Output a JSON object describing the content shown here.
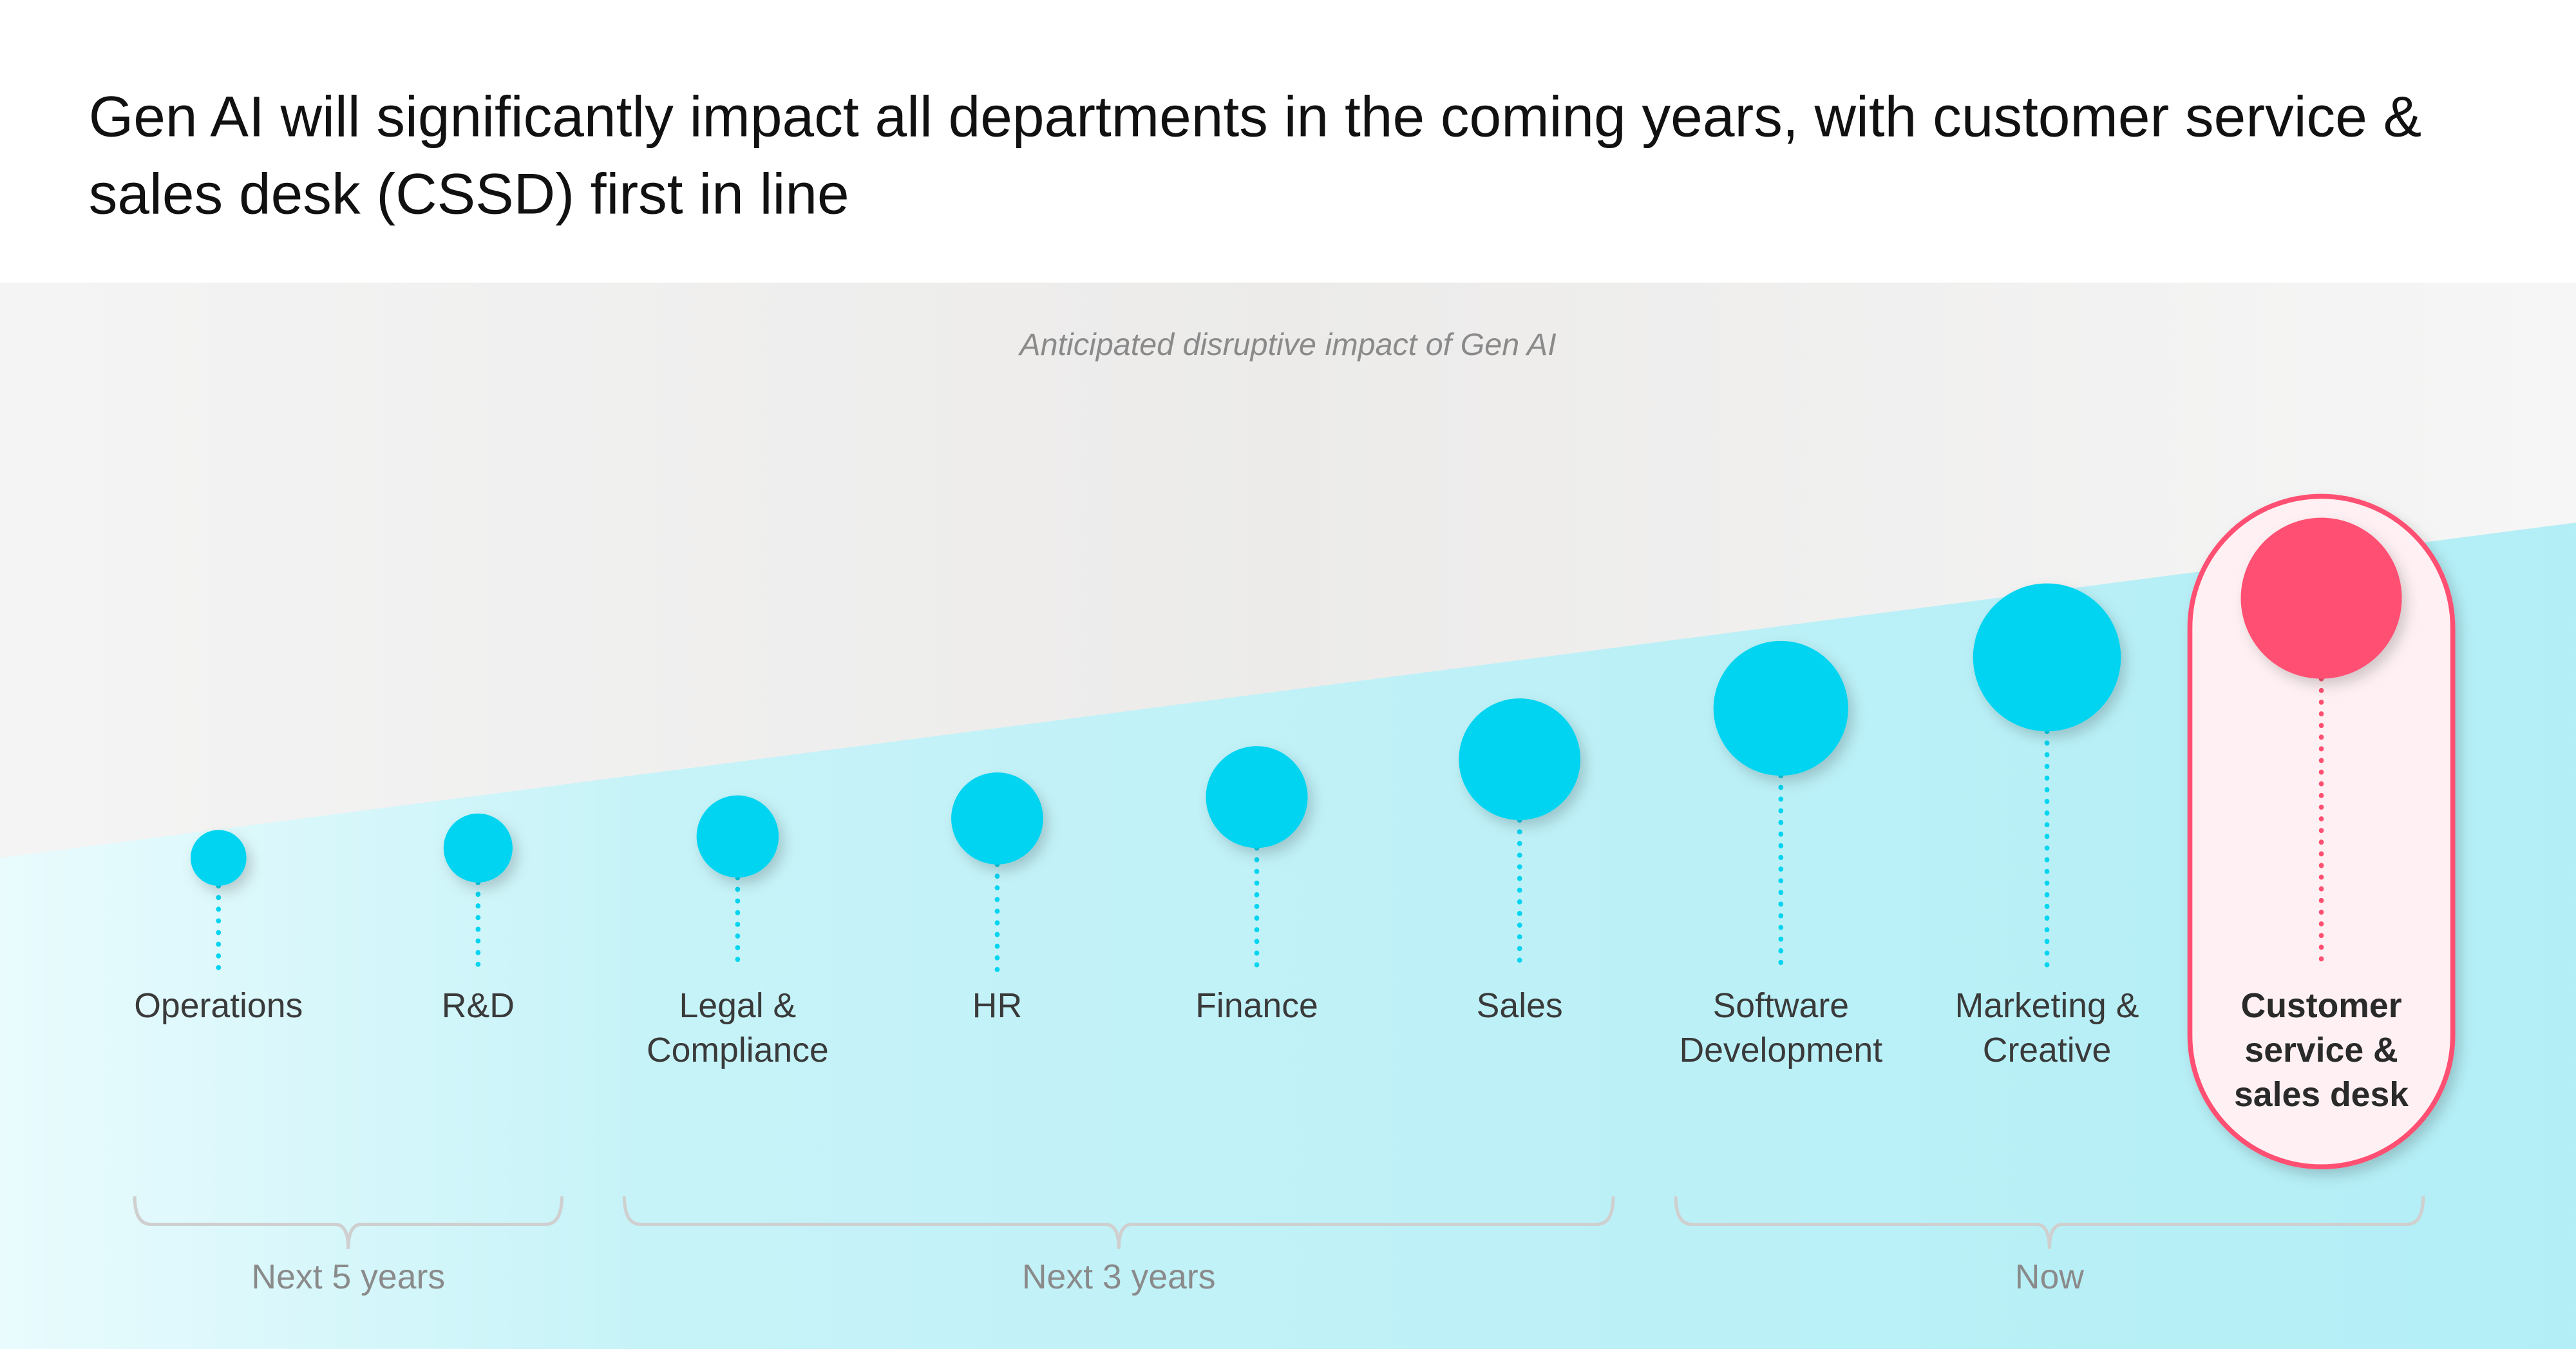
{
  "title": "Gen AI will significantly impact all departments in the coming years, with customer service & sales desk (CSSD) first in line",
  "subtitle": "Anticipated disruptive impact of Gen AI",
  "colors": {
    "bubble": "#00d4f0",
    "highlight": "#ff5072",
    "highlight_bg": "#fff1f3",
    "wedge": "#b3eef6"
  },
  "departments": [
    {
      "lines": [
        "Operations"
      ]
    },
    {
      "lines": [
        "R&D"
      ]
    },
    {
      "lines": [
        "Legal &",
        "Compliance"
      ]
    },
    {
      "lines": [
        "HR"
      ]
    },
    {
      "lines": [
        "Finance"
      ]
    },
    {
      "lines": [
        "Sales"
      ]
    },
    {
      "lines": [
        "Software",
        "Development"
      ]
    },
    {
      "lines": [
        "Marketing &",
        "Creative"
      ]
    },
    {
      "lines": [
        "Customer",
        "service &",
        "sales desk"
      ],
      "highlighted": true
    }
  ],
  "periods": [
    {
      "label": "Next 5 years",
      "from": "Operations",
      "to": "R&D"
    },
    {
      "label": "Next 3 years",
      "from": "Legal & Compliance",
      "to": "Sales"
    },
    {
      "label": "Now",
      "from": "Software Development",
      "to": "Customer service & sales desk"
    }
  ]
}
